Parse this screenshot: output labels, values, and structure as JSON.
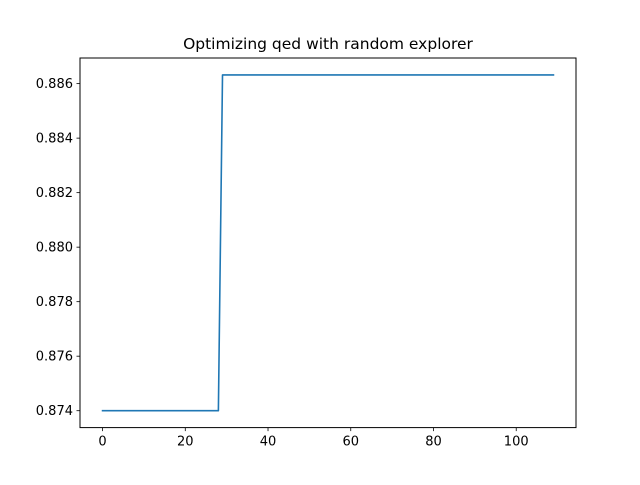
{
  "chart_data": {
    "type": "line",
    "title": "Optimizing qed with random explorer",
    "xlabel": "",
    "ylabel": "",
    "xlim": [
      -5.45,
      114.45
    ],
    "ylim": [
      0.87338,
      0.88694
    ],
    "xticks": [
      0,
      20,
      40,
      60,
      80,
      100
    ],
    "yticks": [
      0.874,
      0.876,
      0.878,
      0.88,
      0.882,
      0.884,
      0.886
    ],
    "ytick_labels": [
      "0.874",
      "0.876",
      "0.878",
      "0.880",
      "0.882",
      "0.884",
      "0.886"
    ],
    "grid": false,
    "legend": "none",
    "series": [
      {
        "color": "#1f77b4",
        "x": [
          0,
          28,
          29,
          109
        ],
        "y": [
          0.874,
          0.874,
          0.88632,
          0.88632
        ]
      }
    ]
  }
}
